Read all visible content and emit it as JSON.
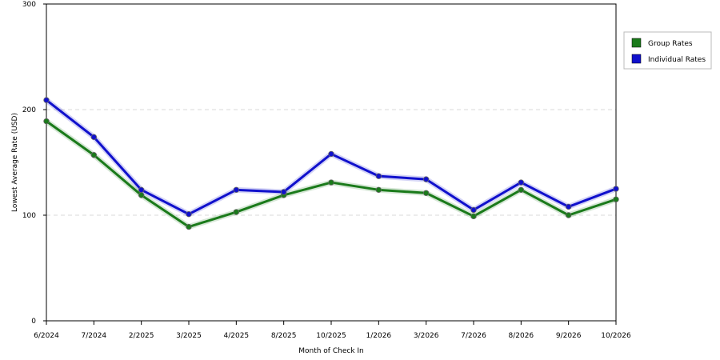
{
  "chart_data": {
    "type": "line",
    "title": "",
    "xlabel": "Month of Check In",
    "ylabel": "Lowest Average Rate (USD)",
    "categories": [
      "6/2024",
      "7/2024",
      "2/2025",
      "3/2025",
      "4/2025",
      "8/2025",
      "10/2025",
      "1/2026",
      "3/2026",
      "7/2026",
      "8/2026",
      "9/2026",
      "10/2026"
    ],
    "ylim": [
      0,
      300
    ],
    "yticks": [
      0,
      100,
      200,
      300
    ],
    "grid": "horizontal-dashed",
    "legend_position": "right",
    "series": [
      {
        "name": "Group Rates",
        "color": "#1a7a1a",
        "values": [
          189,
          157,
          119,
          89,
          103,
          119,
          131,
          124,
          121,
          99,
          124,
          100,
          115
        ]
      },
      {
        "name": "Individual Rates",
        "color": "#1010cc",
        "values": [
          209,
          174,
          124,
          101,
          124,
          122,
          158,
          137,
          134,
          105,
          131,
          108,
          125
        ]
      }
    ]
  }
}
